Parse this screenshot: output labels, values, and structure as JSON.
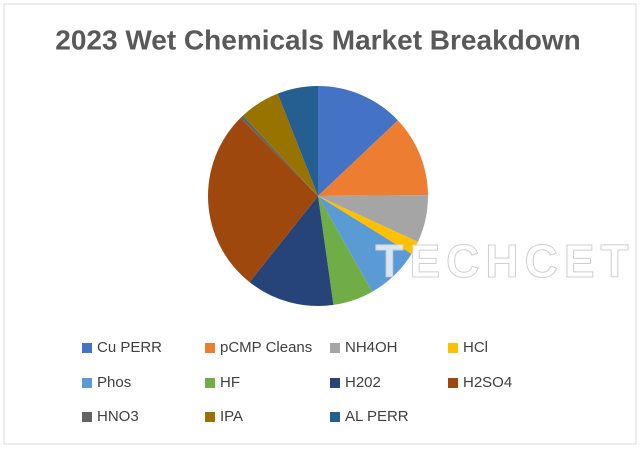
{
  "chart_data": {
    "type": "pie",
    "title": "2023 Wet Chemicals Market Breakdown",
    "categories": [
      "Cu PERR",
      "pCMP Cleans",
      "NH4OH",
      "HCl",
      "Phos",
      "HF",
      "H202",
      "H2SO4",
      "HNO3",
      "IPA",
      "AL PERR"
    ],
    "values": [
      13,
      12,
      7,
      2,
      8,
      6,
      13,
      27,
      0.5,
      6,
      6
    ],
    "colors": [
      "#4472c4",
      "#ed7d31",
      "#a5a5a5",
      "#ffc000",
      "#5b9bd5",
      "#70ad47",
      "#264478",
      "#9e480e",
      "#636363",
      "#997300",
      "#255e91"
    ],
    "watermark": "TECHCET"
  }
}
